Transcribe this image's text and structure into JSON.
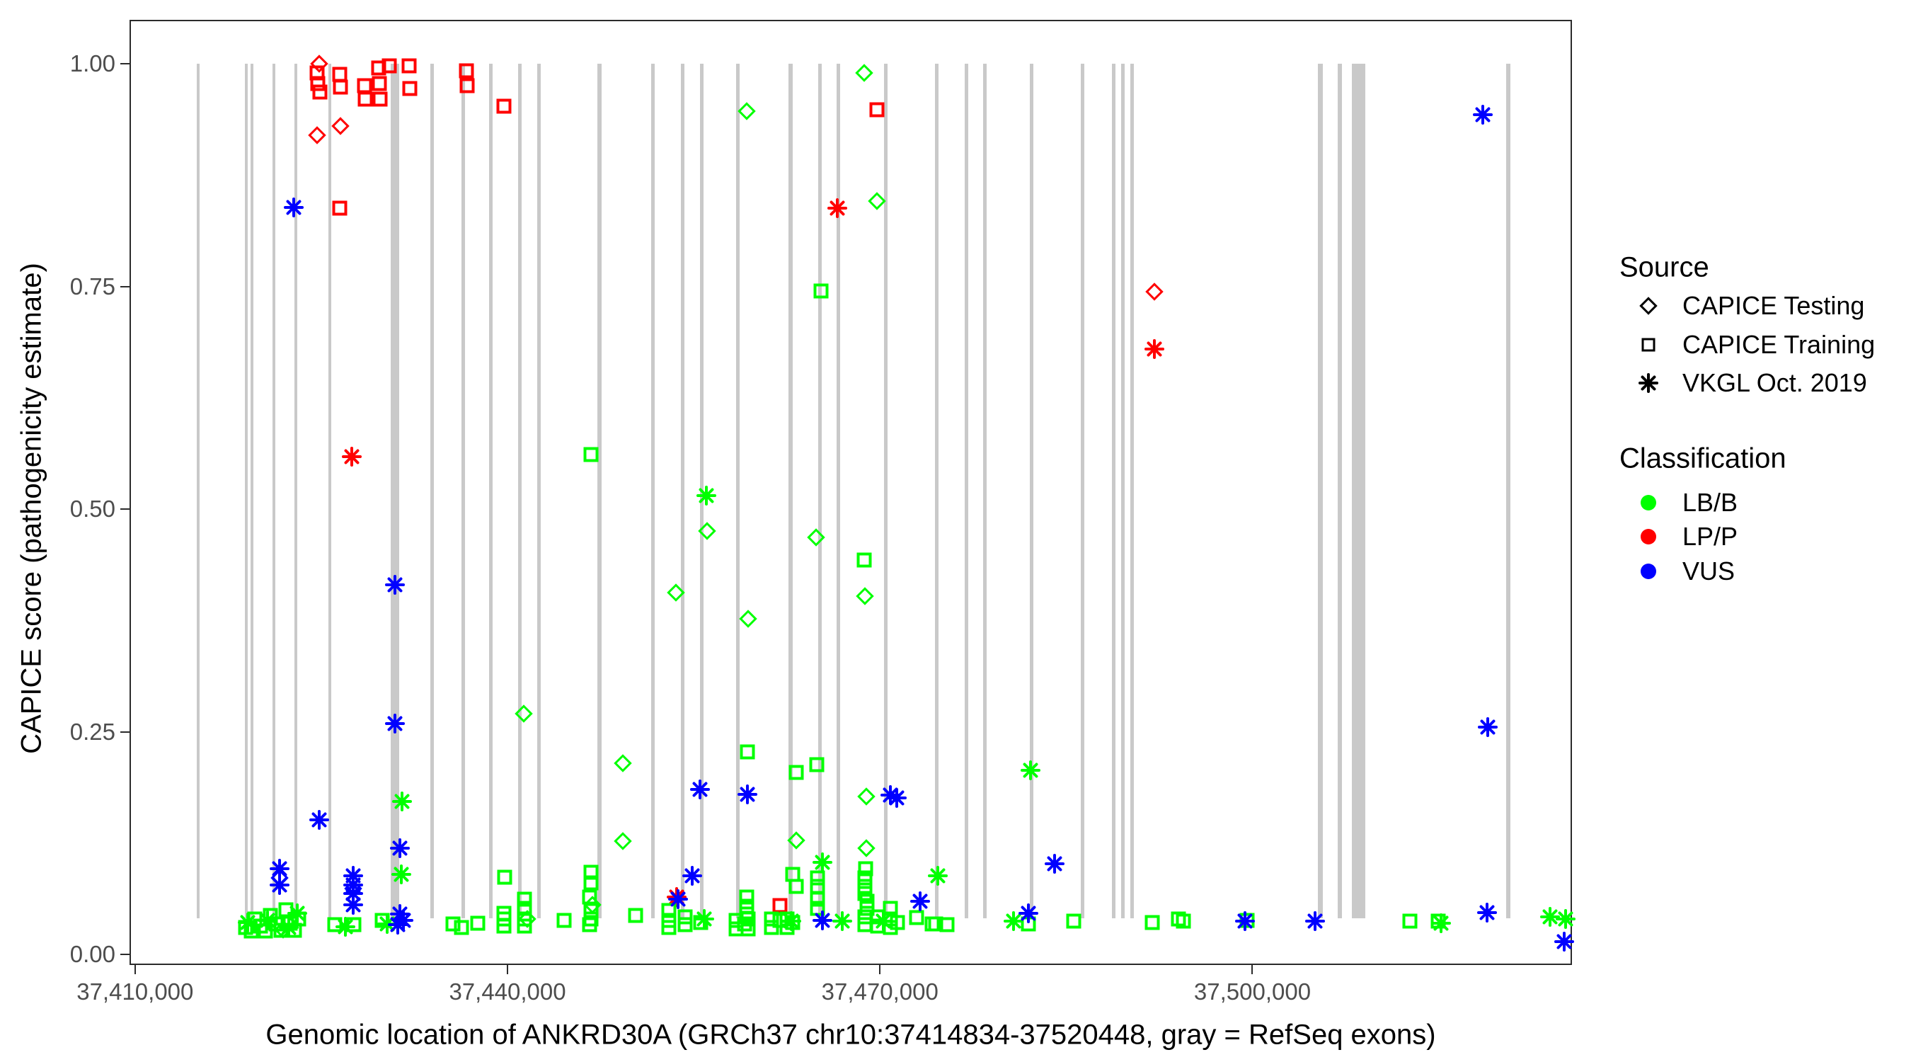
{
  "chart_data": {
    "type": "scatter",
    "title": "",
    "xlabel": "Genomic location of ANKRD30A (GRCh37 chr10:37414834-37520448, gray = RefSeq exons)",
    "ylabel": "CAPICE score (pathogenicity estimate)",
    "x_range": [
      37409554,
      37525728
    ],
    "y_range": [
      0,
      1
    ],
    "grid": "off",
    "x_ticks": [
      {
        "value": 37410000,
        "label": "37,410,000"
      },
      {
        "value": 37440000,
        "label": "37,440,000"
      },
      {
        "value": 37470000,
        "label": "37,470,000"
      },
      {
        "value": 37500000,
        "label": "37,500,000"
      }
    ],
    "y_ticks": [
      {
        "value": 0.0,
        "label": "0.00"
      },
      {
        "value": 0.25,
        "label": "0.25"
      },
      {
        "value": 0.5,
        "label": "0.50"
      },
      {
        "value": 0.75,
        "label": "0.75"
      },
      {
        "value": 1.0,
        "label": "1.00"
      }
    ],
    "exon_color": "#c9c9c9",
    "exons": [
      {
        "pos": 37414970,
        "bp": 285
      },
      {
        "pos": 37418847,
        "bp": 285
      },
      {
        "pos": 37419303,
        "bp": 285
      },
      {
        "pos": 37421070,
        "bp": 285
      },
      {
        "pos": 37422838,
        "bp": 285
      },
      {
        "pos": 37425574,
        "bp": 285
      },
      {
        "pos": 37430819,
        "bp": 684
      },
      {
        "pos": 37433840,
        "bp": 285
      },
      {
        "pos": 37436348,
        "bp": 285
      },
      {
        "pos": 37438572,
        "bp": 285
      },
      {
        "pos": 37440909,
        "bp": 285
      },
      {
        "pos": 37442448,
        "bp": 285
      },
      {
        "pos": 37447293,
        "bp": 342
      },
      {
        "pos": 37451626,
        "bp": 285
      },
      {
        "pos": 37454020,
        "bp": 285
      },
      {
        "pos": 37455560,
        "bp": 285
      },
      {
        "pos": 37458467,
        "bp": 285
      },
      {
        "pos": 37462686,
        "bp": 342
      },
      {
        "pos": 37465081,
        "bp": 285
      },
      {
        "pos": 37466563,
        "bp": 285
      },
      {
        "pos": 37470383,
        "bp": 285
      },
      {
        "pos": 37474487,
        "bp": 285
      },
      {
        "pos": 37476882,
        "bp": 285
      },
      {
        "pos": 37478364,
        "bp": 285
      },
      {
        "pos": 37482127,
        "bp": 285
      },
      {
        "pos": 37486232,
        "bp": 285
      },
      {
        "pos": 37488740,
        "bp": 285
      },
      {
        "pos": 37489481,
        "bp": 285
      },
      {
        "pos": 37490222,
        "bp": 285
      },
      {
        "pos": 37505386,
        "bp": 399
      },
      {
        "pos": 37506925,
        "bp": 342
      },
      {
        "pos": 37508464,
        "bp": 1083
      },
      {
        "pos": 37520493,
        "bp": 342
      }
    ],
    "shape_key": {
      "d": "CAPICE Testing (diamond)",
      "s": "CAPICE Training (square)",
      "a": "VKGL Oct. 2019 (asterisk)"
    },
    "class_key": {
      "B": "LB/B",
      "P": "LP/P",
      "U": "VUS"
    },
    "class_colors": {
      "B": "#00ff00",
      "P": "#ff0000",
      "U": "#0000ff"
    },
    "points": [
      [
        37424832,
        1.0,
        "d",
        "P"
      ],
      [
        37424661,
        0.99,
        "s",
        "P"
      ],
      [
        37424718,
        0.978,
        "s",
        "P"
      ],
      [
        37424889,
        0.968,
        "s",
        "P"
      ],
      [
        37426485,
        0.988,
        "s",
        "P"
      ],
      [
        37426542,
        0.974,
        "s",
        "P"
      ],
      [
        37428481,
        0.975,
        "s",
        "P"
      ],
      [
        37428538,
        0.96,
        "s",
        "P"
      ],
      [
        37429621,
        0.995,
        "s",
        "P"
      ],
      [
        37429678,
        0.978,
        "s",
        "P"
      ],
      [
        37429735,
        0.96,
        "s",
        "P"
      ],
      [
        37430476,
        0.998,
        "s",
        "P"
      ],
      [
        37432072,
        0.998,
        "s",
        "P"
      ],
      [
        37432129,
        0.972,
        "s",
        "P"
      ],
      [
        37436689,
        0.992,
        "s",
        "P"
      ],
      [
        37436746,
        0.975,
        "s",
        "P"
      ],
      [
        37439710,
        0.952,
        "s",
        "P"
      ],
      [
        37424661,
        0.92,
        "d",
        "P"
      ],
      [
        37426542,
        0.93,
        "d",
        "P"
      ],
      [
        37426485,
        0.838,
        "s",
        "P"
      ],
      [
        37427455,
        0.559,
        "a",
        "P"
      ],
      [
        37466565,
        0.838,
        "a",
        "P"
      ],
      [
        37469752,
        0.948,
        "s",
        "P"
      ],
      [
        37492097,
        0.744,
        "d",
        "P"
      ],
      [
        37492097,
        0.68,
        "a",
        "P"
      ],
      [
        37461942,
        0.055,
        "s",
        "P"
      ],
      [
        37453620,
        0.064,
        "a",
        "P"
      ],
      [
        37459263,
        0.947,
        "d",
        "B"
      ],
      [
        37468726,
        0.99,
        "d",
        "B"
      ],
      [
        37469752,
        0.846,
        "d",
        "B"
      ],
      [
        37446723,
        0.561,
        "s",
        "B"
      ],
      [
        37456014,
        0.515,
        "a",
        "B"
      ],
      [
        37456071,
        0.475,
        "d",
        "B"
      ],
      [
        37453563,
        0.406,
        "d",
        "B"
      ],
      [
        37459377,
        0.377,
        "d",
        "B"
      ],
      [
        37464849,
        0.468,
        "d",
        "B"
      ],
      [
        37468726,
        0.443,
        "s",
        "B"
      ],
      [
        37468783,
        0.402,
        "d",
        "B"
      ],
      [
        37465248,
        0.745,
        "s",
        "B"
      ],
      [
        37441307,
        0.27,
        "d",
        "B"
      ],
      [
        37449288,
        0.215,
        "d",
        "B"
      ],
      [
        37449288,
        0.127,
        "d",
        "B"
      ],
      [
        37459320,
        0.227,
        "s",
        "B"
      ],
      [
        37463253,
        0.204,
        "s",
        "B"
      ],
      [
        37464906,
        0.213,
        "s",
        "B"
      ],
      [
        37482121,
        0.207,
        "a",
        "B"
      ],
      [
        37463253,
        0.128,
        "d",
        "B"
      ],
      [
        37468897,
        0.177,
        "d",
        "B"
      ],
      [
        37468897,
        0.119,
        "d",
        "B"
      ],
      [
        37465362,
        0.103,
        "a",
        "B"
      ],
      [
        37431502,
        0.172,
        "a",
        "B"
      ],
      [
        37431445,
        0.09,
        "a",
        "B"
      ],
      [
        37418904,
        0.03,
        "s",
        "B"
      ],
      [
        37419360,
        0.026,
        "s",
        "B"
      ],
      [
        37419645,
        0.04,
        "s",
        "B"
      ],
      [
        37420101,
        0.032,
        "s",
        "B"
      ],
      [
        37420500,
        0.026,
        "s",
        "B"
      ],
      [
        37420899,
        0.044,
        "s",
        "B"
      ],
      [
        37421355,
        0.034,
        "s",
        "B"
      ],
      [
        37421754,
        0.027,
        "s",
        "B"
      ],
      [
        37422153,
        0.05,
        "s",
        "B"
      ],
      [
        37422495,
        0.035,
        "s",
        "B"
      ],
      [
        37422837,
        0.027,
        "s",
        "B"
      ],
      [
        37423179,
        0.04,
        "s",
        "B"
      ],
      [
        37419075,
        0.036,
        "a",
        "B"
      ],
      [
        37420671,
        0.038,
        "a",
        "B"
      ],
      [
        37422381,
        0.03,
        "a",
        "B"
      ],
      [
        37423065,
        0.046,
        "a",
        "B"
      ],
      [
        37421925,
        0.028,
        "d",
        "B"
      ],
      [
        37426086,
        0.033,
        "s",
        "B"
      ],
      [
        37427626,
        0.033,
        "s",
        "B"
      ],
      [
        37426942,
        0.031,
        "a",
        "B"
      ],
      [
        37429906,
        0.038,
        "s",
        "B"
      ],
      [
        37430305,
        0.034,
        "a",
        "B"
      ],
      [
        37435606,
        0.034,
        "s",
        "B"
      ],
      [
        37436290,
        0.03,
        "s",
        "B"
      ],
      [
        37437601,
        0.035,
        "s",
        "B"
      ],
      [
        37439710,
        0.046,
        "s",
        "B"
      ],
      [
        37439710,
        0.04,
        "s",
        "B"
      ],
      [
        37439710,
        0.032,
        "s",
        "B"
      ],
      [
        37439767,
        0.087,
        "s",
        "B"
      ],
      [
        37441364,
        0.062,
        "s",
        "B"
      ],
      [
        37441364,
        0.052,
        "s",
        "B"
      ],
      [
        37441364,
        0.04,
        "s",
        "B"
      ],
      [
        37441364,
        0.032,
        "s",
        "B"
      ],
      [
        37441592,
        0.04,
        "d",
        "B"
      ],
      [
        37444556,
        0.038,
        "s",
        "B"
      ],
      [
        37446723,
        0.092,
        "s",
        "B"
      ],
      [
        37446723,
        0.08,
        "s",
        "B"
      ],
      [
        37446609,
        0.064,
        "s",
        "B"
      ],
      [
        37446723,
        0.049,
        "s",
        "B"
      ],
      [
        37446723,
        0.04,
        "s",
        "B"
      ],
      [
        37446609,
        0.033,
        "s",
        "B"
      ],
      [
        37446837,
        0.056,
        "d",
        "B"
      ],
      [
        37450314,
        0.044,
        "s",
        "B"
      ],
      [
        37452993,
        0.049,
        "s",
        "B"
      ],
      [
        37452993,
        0.038,
        "s",
        "B"
      ],
      [
        37452993,
        0.03,
        "s",
        "B"
      ],
      [
        37454304,
        0.042,
        "s",
        "B"
      ],
      [
        37454304,
        0.033,
        "s",
        "B"
      ],
      [
        37455558,
        0.036,
        "s",
        "B"
      ],
      [
        37455843,
        0.04,
        "a",
        "B"
      ],
      [
        37458408,
        0.038,
        "s",
        "B"
      ],
      [
        37458408,
        0.029,
        "s",
        "B"
      ],
      [
        37459092,
        0.034,
        "s",
        "B"
      ],
      [
        37459377,
        0.04,
        "s",
        "B"
      ],
      [
        37459377,
        0.029,
        "s",
        "B"
      ],
      [
        37459263,
        0.064,
        "s",
        "B"
      ],
      [
        37459263,
        0.054,
        "s",
        "B"
      ],
      [
        37459263,
        0.045,
        "s",
        "B"
      ],
      [
        37461258,
        0.04,
        "s",
        "B"
      ],
      [
        37461258,
        0.03,
        "s",
        "B"
      ],
      [
        37461942,
        0.038,
        "s",
        "B"
      ],
      [
        37462512,
        0.04,
        "s",
        "B"
      ],
      [
        37462512,
        0.03,
        "s",
        "B"
      ],
      [
        37462968,
        0.036,
        "s",
        "B"
      ],
      [
        37462968,
        0.09,
        "s",
        "B"
      ],
      [
        37462854,
        0.037,
        "a",
        "B"
      ],
      [
        37463253,
        0.076,
        "s",
        "B"
      ],
      [
        37464963,
        0.086,
        "s",
        "B"
      ],
      [
        37464963,
        0.076,
        "s",
        "B"
      ],
      [
        37464963,
        0.062,
        "s",
        "B"
      ],
      [
        37464963,
        0.052,
        "s",
        "B"
      ],
      [
        37466958,
        0.037,
        "a",
        "B"
      ],
      [
        37468783,
        0.086,
        "s",
        "B"
      ],
      [
        37468783,
        0.076,
        "s",
        "B"
      ],
      [
        37468783,
        0.068,
        "s",
        "B"
      ],
      [
        37468954,
        0.06,
        "s",
        "B"
      ],
      [
        37468954,
        0.052,
        "s",
        "B"
      ],
      [
        37468783,
        0.042,
        "s",
        "B"
      ],
      [
        37468783,
        0.033,
        "s",
        "B"
      ],
      [
        37469809,
        0.042,
        "s",
        "B"
      ],
      [
        37469809,
        0.032,
        "s",
        "B"
      ],
      [
        37470835,
        0.052,
        "s",
        "B"
      ],
      [
        37470835,
        0.04,
        "s",
        "B"
      ],
      [
        37470835,
        0.03,
        "s",
        "B"
      ],
      [
        37471405,
        0.036,
        "s",
        "B"
      ],
      [
        37470265,
        0.037,
        "a",
        "B"
      ],
      [
        37468840,
        0.096,
        "s",
        "B"
      ],
      [
        37472944,
        0.041,
        "s",
        "B"
      ],
      [
        37474198,
        0.034,
        "s",
        "B"
      ],
      [
        37474483,
        0.034,
        "s",
        "B"
      ],
      [
        37475395,
        0.033,
        "s",
        "B"
      ],
      [
        37474654,
        0.088,
        "a",
        "B"
      ],
      [
        37480753,
        0.037,
        "a",
        "B"
      ],
      [
        37481950,
        0.034,
        "s",
        "B"
      ],
      [
        37485599,
        0.037,
        "s",
        "B"
      ],
      [
        37491926,
        0.036,
        "s",
        "B"
      ],
      [
        37494035,
        0.04,
        "s",
        "B"
      ],
      [
        37494434,
        0.037,
        "s",
        "B"
      ],
      [
        37499564,
        0.038,
        "s",
        "B"
      ],
      [
        37512675,
        0.037,
        "s",
        "B"
      ],
      [
        37514955,
        0.037,
        "s",
        "B"
      ],
      [
        37515183,
        0.035,
        "a",
        "B"
      ],
      [
        37523961,
        0.042,
        "a",
        "B"
      ],
      [
        37525215,
        0.04,
        "a",
        "B"
      ],
      [
        37422780,
        0.839,
        "a",
        "U"
      ],
      [
        37518545,
        0.943,
        "a",
        "U"
      ],
      [
        37518944,
        0.255,
        "a",
        "U"
      ],
      [
        37430932,
        0.415,
        "a",
        "U"
      ],
      [
        37430932,
        0.259,
        "a",
        "U"
      ],
      [
        37431331,
        0.119,
        "a",
        "U"
      ],
      [
        37424832,
        0.151,
        "a",
        "U"
      ],
      [
        37455501,
        0.185,
        "a",
        "U"
      ],
      [
        37459320,
        0.18,
        "a",
        "U"
      ],
      [
        37470835,
        0.179,
        "a",
        "U"
      ],
      [
        37471348,
        0.176,
        "a",
        "U"
      ],
      [
        37484060,
        0.102,
        "a",
        "U"
      ],
      [
        37481950,
        0.046,
        "a",
        "U"
      ],
      [
        37473229,
        0.06,
        "a",
        "U"
      ],
      [
        37421640,
        0.096,
        "a",
        "U"
      ],
      [
        37421640,
        0.086,
        "d",
        "U"
      ],
      [
        37421640,
        0.078,
        "a",
        "U"
      ],
      [
        37427569,
        0.088,
        "a",
        "U"
      ],
      [
        37427569,
        0.078,
        "a",
        "U"
      ],
      [
        37427569,
        0.074,
        "d",
        "U"
      ],
      [
        37427569,
        0.068,
        "a",
        "U"
      ],
      [
        37427569,
        0.056,
        "a",
        "U"
      ],
      [
        37431331,
        0.045,
        "a",
        "U"
      ],
      [
        37431616,
        0.038,
        "a",
        "U"
      ],
      [
        37431160,
        0.033,
        "a",
        "U"
      ],
      [
        37454874,
        0.088,
        "a",
        "U"
      ],
      [
        37453734,
        0.062,
        "a",
        "U"
      ],
      [
        37465362,
        0.038,
        "a",
        "U"
      ],
      [
        37499393,
        0.037,
        "a",
        "U"
      ],
      [
        37505037,
        0.037,
        "a",
        "U"
      ],
      [
        37518887,
        0.047,
        "a",
        "U"
      ],
      [
        37525101,
        0.014,
        "a",
        "U"
      ]
    ]
  },
  "legend": {
    "source": {
      "title": "Source",
      "items": [
        {
          "label": "CAPICE Testing",
          "marker": "diamond"
        },
        {
          "label": "CAPICE Training",
          "marker": "square"
        },
        {
          "label": "VKGL Oct. 2019",
          "marker": "asterisk"
        }
      ]
    },
    "classification": {
      "title": "Classification",
      "items": [
        {
          "label": "LB/B",
          "color": "#00ff00"
        },
        {
          "label": "LP/P",
          "color": "#ff0000"
        },
        {
          "label": "VUS",
          "color": "#0000ff"
        }
      ]
    }
  }
}
